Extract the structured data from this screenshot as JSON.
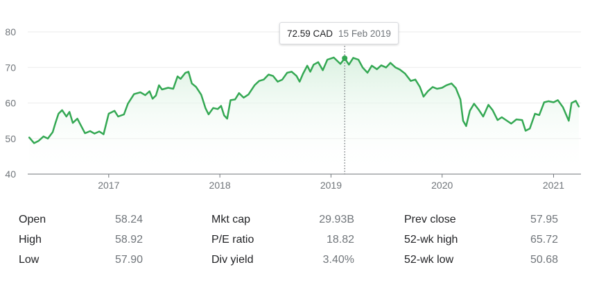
{
  "chart_data": {
    "type": "area",
    "y_ticks": [
      40,
      50,
      60,
      70,
      80
    ],
    "x_ticks": [
      "2017",
      "2018",
      "2019",
      "2020",
      "2021"
    ],
    "ylim": [
      40,
      80
    ],
    "grid": true,
    "colors": {
      "line": "#34a853",
      "fill_top": "#d7f0de",
      "grid": "#ebebeb",
      "axis": "#70757a"
    },
    "series": [
      {
        "values": [
          [
            "2016-04-15",
            50.3
          ],
          [
            "2016-05-01",
            48.7
          ],
          [
            "2016-05-15",
            49.3
          ],
          [
            "2016-06-01",
            50.6
          ],
          [
            "2016-06-15",
            50.0
          ],
          [
            "2016-07-01",
            51.8
          ],
          [
            "2016-07-10",
            54.4
          ],
          [
            "2016-07-20",
            57.0
          ],
          [
            "2016-08-01",
            58.0
          ],
          [
            "2016-08-15",
            56.2
          ],
          [
            "2016-08-25",
            57.5
          ],
          [
            "2016-09-05",
            54.4
          ],
          [
            "2016-09-20",
            55.6
          ],
          [
            "2016-10-01",
            53.8
          ],
          [
            "2016-10-15",
            51.5
          ],
          [
            "2016-11-01",
            52.1
          ],
          [
            "2016-11-15",
            51.4
          ],
          [
            "2016-12-01",
            52.0
          ],
          [
            "2016-12-15",
            51.2
          ],
          [
            "2017-01-01",
            57.0
          ],
          [
            "2017-01-20",
            57.8
          ],
          [
            "2017-02-01",
            56.2
          ],
          [
            "2017-02-20",
            56.8
          ],
          [
            "2017-03-05",
            59.8
          ],
          [
            "2017-03-25",
            62.5
          ],
          [
            "2017-04-15",
            63.0
          ],
          [
            "2017-05-01",
            62.2
          ],
          [
            "2017-05-15",
            63.3
          ],
          [
            "2017-05-25",
            61.2
          ],
          [
            "2017-06-05",
            62.1
          ],
          [
            "2017-06-15",
            65.0
          ],
          [
            "2017-06-25",
            63.8
          ],
          [
            "2017-07-15",
            64.3
          ],
          [
            "2017-08-01",
            64.0
          ],
          [
            "2017-08-15",
            67.5
          ],
          [
            "2017-08-25",
            66.8
          ],
          [
            "2017-09-10",
            68.5
          ],
          [
            "2017-09-20",
            68.8
          ],
          [
            "2017-10-01",
            65.5
          ],
          [
            "2017-10-15",
            64.5
          ],
          [
            "2017-11-01",
            62.3
          ],
          [
            "2017-11-15",
            58.5
          ],
          [
            "2017-11-25",
            56.8
          ],
          [
            "2017-12-10",
            58.6
          ],
          [
            "2017-12-25",
            58.3
          ],
          [
            "2018-01-05",
            59.2
          ],
          [
            "2018-01-15",
            56.5
          ],
          [
            "2018-01-25",
            55.6
          ],
          [
            "2018-02-05",
            60.8
          ],
          [
            "2018-02-20",
            61.0
          ],
          [
            "2018-03-05",
            62.8
          ],
          [
            "2018-03-20",
            61.5
          ],
          [
            "2018-04-05",
            62.4
          ],
          [
            "2018-04-25",
            65.0
          ],
          [
            "2018-05-10",
            66.2
          ],
          [
            "2018-05-25",
            66.6
          ],
          [
            "2018-06-10",
            68.0
          ],
          [
            "2018-06-25",
            67.6
          ],
          [
            "2018-07-10",
            66.0
          ],
          [
            "2018-07-25",
            66.6
          ],
          [
            "2018-08-10",
            68.5
          ],
          [
            "2018-08-25",
            68.8
          ],
          [
            "2018-09-10",
            67.6
          ],
          [
            "2018-09-20",
            66.0
          ],
          [
            "2018-10-01",
            68.2
          ],
          [
            "2018-10-15",
            70.5
          ],
          [
            "2018-10-25",
            68.8
          ],
          [
            "2018-11-05",
            70.8
          ],
          [
            "2018-11-20",
            71.5
          ],
          [
            "2018-12-05",
            69.2
          ],
          [
            "2018-12-20",
            72.2
          ],
          [
            "2019-01-10",
            72.8
          ],
          [
            "2019-02-01",
            71.0
          ],
          [
            "2019-02-15",
            72.59
          ],
          [
            "2019-03-01",
            70.8
          ],
          [
            "2019-03-15",
            72.7
          ],
          [
            "2019-04-01",
            72.2
          ],
          [
            "2019-04-15",
            70.0
          ],
          [
            "2019-05-01",
            68.5
          ],
          [
            "2019-05-15",
            70.5
          ],
          [
            "2019-06-01",
            69.5
          ],
          [
            "2019-06-15",
            70.6
          ],
          [
            "2019-07-01",
            70.0
          ],
          [
            "2019-07-15",
            71.3
          ],
          [
            "2019-08-01",
            70.0
          ],
          [
            "2019-08-15",
            69.4
          ],
          [
            "2019-09-01",
            68.3
          ],
          [
            "2019-09-20",
            66.2
          ],
          [
            "2019-10-05",
            66.6
          ],
          [
            "2019-10-20",
            64.5
          ],
          [
            "2019-11-01",
            61.8
          ],
          [
            "2019-11-15",
            63.3
          ],
          [
            "2019-12-01",
            64.5
          ],
          [
            "2019-12-15",
            64.0
          ],
          [
            "2020-01-01",
            64.3
          ],
          [
            "2020-01-15",
            65.0
          ],
          [
            "2020-02-01",
            65.5
          ],
          [
            "2020-02-15",
            64.2
          ],
          [
            "2020-03-01",
            61.0
          ],
          [
            "2020-03-10",
            55.0
          ],
          [
            "2020-03-20",
            53.5
          ],
          [
            "2020-04-01",
            57.8
          ],
          [
            "2020-04-15",
            59.8
          ],
          [
            "2020-05-01",
            58.0
          ],
          [
            "2020-05-15",
            56.2
          ],
          [
            "2020-06-01",
            59.5
          ],
          [
            "2020-06-15",
            58.0
          ],
          [
            "2020-07-01",
            55.2
          ],
          [
            "2020-07-15",
            56.0
          ],
          [
            "2020-08-01",
            55.0
          ],
          [
            "2020-08-15",
            54.2
          ],
          [
            "2020-09-01",
            55.4
          ],
          [
            "2020-09-20",
            55.2
          ],
          [
            "2020-10-01",
            52.2
          ],
          [
            "2020-10-15",
            52.8
          ],
          [
            "2020-11-01",
            57.0
          ],
          [
            "2020-11-15",
            56.6
          ],
          [
            "2020-12-01",
            60.2
          ],
          [
            "2020-12-15",
            60.5
          ],
          [
            "2021-01-01",
            60.2
          ],
          [
            "2021-01-15",
            60.8
          ],
          [
            "2021-02-01",
            58.8
          ],
          [
            "2021-02-10",
            57.0
          ],
          [
            "2021-02-20",
            55.0
          ],
          [
            "2021-03-01",
            60.0
          ],
          [
            "2021-03-15",
            60.6
          ],
          [
            "2021-03-25",
            59.0
          ]
        ]
      }
    ],
    "highlight": {
      "date": "2019-02-15",
      "value": 72.59
    }
  },
  "tooltip": {
    "value": "72.59 CAD",
    "date": "15 Feb 2019"
  },
  "stats": {
    "col1": [
      {
        "label": "Open",
        "value": "58.24"
      },
      {
        "label": "High",
        "value": "58.92"
      },
      {
        "label": "Low",
        "value": "57.90"
      }
    ],
    "col2": [
      {
        "label": "Mkt cap",
        "value": "29.93B"
      },
      {
        "label": "P/E ratio",
        "value": "18.82"
      },
      {
        "label": "Div yield",
        "value": "3.40%"
      }
    ],
    "col3": [
      {
        "label": "Prev close",
        "value": "57.95"
      },
      {
        "label": "52-wk high",
        "value": "65.72"
      },
      {
        "label": "52-wk low",
        "value": "50.68"
      }
    ]
  }
}
